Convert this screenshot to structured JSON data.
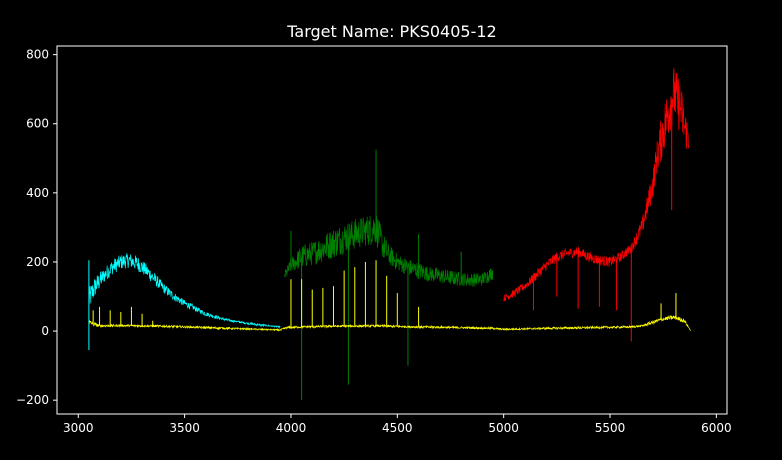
{
  "chart_data": {
    "type": "line",
    "title": "Target Name: PKS0405-12",
    "xlabel": "",
    "ylabel": "",
    "xlim": [
      2900,
      6050
    ],
    "ylim": [
      -240,
      825
    ],
    "xticks": [
      3000,
      3500,
      4000,
      4500,
      5000,
      5500,
      6000
    ],
    "yticks": [
      -200,
      0,
      200,
      400,
      600,
      800
    ],
    "xtick_labels": [
      "3000",
      "3500",
      "4000",
      "4500",
      "5000",
      "5500",
      "6000"
    ],
    "ytick_labels": [
      "−200",
      "0",
      "200",
      "400",
      "600",
      "800"
    ],
    "grid": false,
    "background": "#000000",
    "series": [
      {
        "color": "#00ffff",
        "x": [
          3050,
          3080,
          3120,
          3160,
          3200,
          3240,
          3280,
          3320,
          3360,
          3400,
          3450,
          3500,
          3550,
          3600,
          3650,
          3700,
          3750,
          3800,
          3850,
          3900,
          3950
        ],
        "y": [
          90,
          130,
          160,
          185,
          200,
          205,
          195,
          175,
          150,
          125,
          100,
          80,
          65,
          50,
          40,
          32,
          27,
          22,
          18,
          15,
          12
        ],
        "spread": [
          35,
          30,
          22,
          22,
          22,
          22,
          22,
          20,
          18,
          15,
          12,
          10,
          8,
          6,
          5,
          4,
          3,
          3,
          3,
          2,
          2
        ],
        "spikes": [
          [
            3050,
            205
          ],
          [
            3050,
            -55
          ]
        ]
      },
      {
        "color": "#008000",
        "x": [
          3970,
          4000,
          4050,
          4100,
          4150,
          4200,
          4250,
          4300,
          4350,
          4400,
          4430,
          4460,
          4500,
          4550,
          4600,
          4650,
          4700,
          4750,
          4800,
          4850,
          4900,
          4950
        ],
        "y": [
          160,
          190,
          215,
          225,
          240,
          255,
          270,
          280,
          290,
          300,
          250,
          220,
          200,
          185,
          175,
          165,
          160,
          155,
          150,
          148,
          150,
          170
        ],
        "spread": [
          15,
          20,
          35,
          35,
          40,
          45,
          45,
          45,
          45,
          50,
          40,
          30,
          25,
          25,
          25,
          22,
          22,
          22,
          20,
          20,
          20,
          20
        ],
        "spikes": [
          [
            4000,
            290
          ],
          [
            4050,
            -200
          ],
          [
            4270,
            -155
          ],
          [
            4400,
            525
          ],
          [
            4550,
            -100
          ],
          [
            4600,
            280
          ],
          [
            4800,
            230
          ]
        ]
      },
      {
        "color": "#ff0000",
        "x": [
          5000,
          5050,
          5100,
          5150,
          5200,
          5250,
          5300,
          5350,
          5400,
          5450,
          5500,
          5550,
          5600,
          5650,
          5700,
          5720,
          5750,
          5780,
          5800,
          5830,
          5850,
          5870
        ],
        "y": [
          95,
          110,
          130,
          160,
          190,
          215,
          225,
          230,
          215,
          205,
          200,
          215,
          240,
          300,
          420,
          500,
          580,
          650,
          690,
          650,
          590,
          560
        ],
        "spread": [
          10,
          12,
          12,
          15,
          15,
          15,
          15,
          15,
          15,
          15,
          15,
          15,
          15,
          25,
          40,
          50,
          70,
          80,
          80,
          80,
          60,
          50
        ],
        "spikes": [
          [
            5140,
            60
          ],
          [
            5250,
            100
          ],
          [
            5350,
            65
          ],
          [
            5450,
            70
          ],
          [
            5530,
            60
          ],
          [
            5600,
            -30
          ],
          [
            5790,
            350
          ]
        ]
      },
      {
        "color": "#ffff00",
        "x": [
          3050,
          3100,
          3200,
          3300,
          3400,
          3500,
          3600,
          3700,
          3800,
          3900,
          3950,
          3980,
          4050,
          4200,
          4400,
          4600,
          4800,
          4950,
          5000,
          5200,
          5400,
          5600,
          5650,
          5700,
          5750,
          5800,
          5850,
          5880
        ],
        "y": [
          25,
          15,
          16,
          15,
          14,
          12,
          10,
          8,
          6,
          4,
          3,
          10,
          12,
          14,
          15,
          12,
          10,
          8,
          5,
          8,
          10,
          12,
          15,
          25,
          35,
          40,
          30,
          0
        ],
        "spread": [
          8,
          4,
          3,
          3,
          3,
          3,
          3,
          3,
          2,
          2,
          2,
          3,
          3,
          3,
          3,
          3,
          3,
          3,
          2,
          3,
          3,
          3,
          3,
          5,
          5,
          6,
          6,
          0
        ],
        "spikes": [
          [
            3070,
            60
          ],
          [
            3100,
            70
          ],
          [
            3150,
            60
          ],
          [
            3200,
            55
          ],
          [
            3250,
            70
          ],
          [
            3300,
            50
          ],
          [
            3350,
            30
          ],
          [
            4000,
            150
          ],
          [
            4050,
            150
          ],
          [
            4100,
            120
          ],
          [
            4150,
            125
          ],
          [
            4200,
            130
          ],
          [
            4250,
            175
          ],
          [
            4300,
            185
          ],
          [
            4350,
            200
          ],
          [
            4400,
            205
          ],
          [
            4450,
            160
          ],
          [
            4500,
            110
          ],
          [
            4600,
            70
          ],
          [
            5740,
            80
          ],
          [
            5810,
            110
          ]
        ]
      }
    ]
  }
}
